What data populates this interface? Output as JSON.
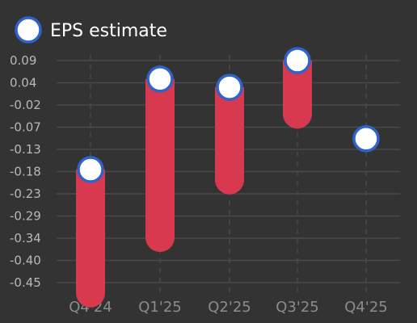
{
  "chart_data": {
    "type": "range-bar",
    "legend": {
      "label": "EPS estimate",
      "position": "top-left"
    },
    "categories": [
      "Q4'24",
      "Q1'25",
      "Q2'25",
      "Q3'25",
      "Q4'25"
    ],
    "series": [
      {
        "name": "EPS estimate",
        "values": [
          -0.175,
          0.045,
          0.025,
          0.09,
          -0.1
        ]
      }
    ],
    "ranges": [
      {
        "low": -0.475,
        "high": -0.175
      },
      {
        "low": -0.34,
        "high": 0.045
      },
      {
        "low": -0.2,
        "high": 0.025
      },
      {
        "low": -0.04,
        "high": 0.09
      },
      null
    ],
    "yticks": [
      "0.09",
      "0.04",
      "-0.02",
      "-0.07",
      "-0.13",
      "-0.18",
      "-0.23",
      "-0.29",
      "-0.34",
      "-0.40",
      "-0.45"
    ],
    "ylim": [
      -0.47,
      0.1
    ],
    "grid": true,
    "colors": {
      "background": "#333333",
      "bar": "#d9394f",
      "marker_fill": "#ffffff",
      "marker_stroke": "#2f63c9",
      "grid": "#4a4a4a"
    }
  }
}
